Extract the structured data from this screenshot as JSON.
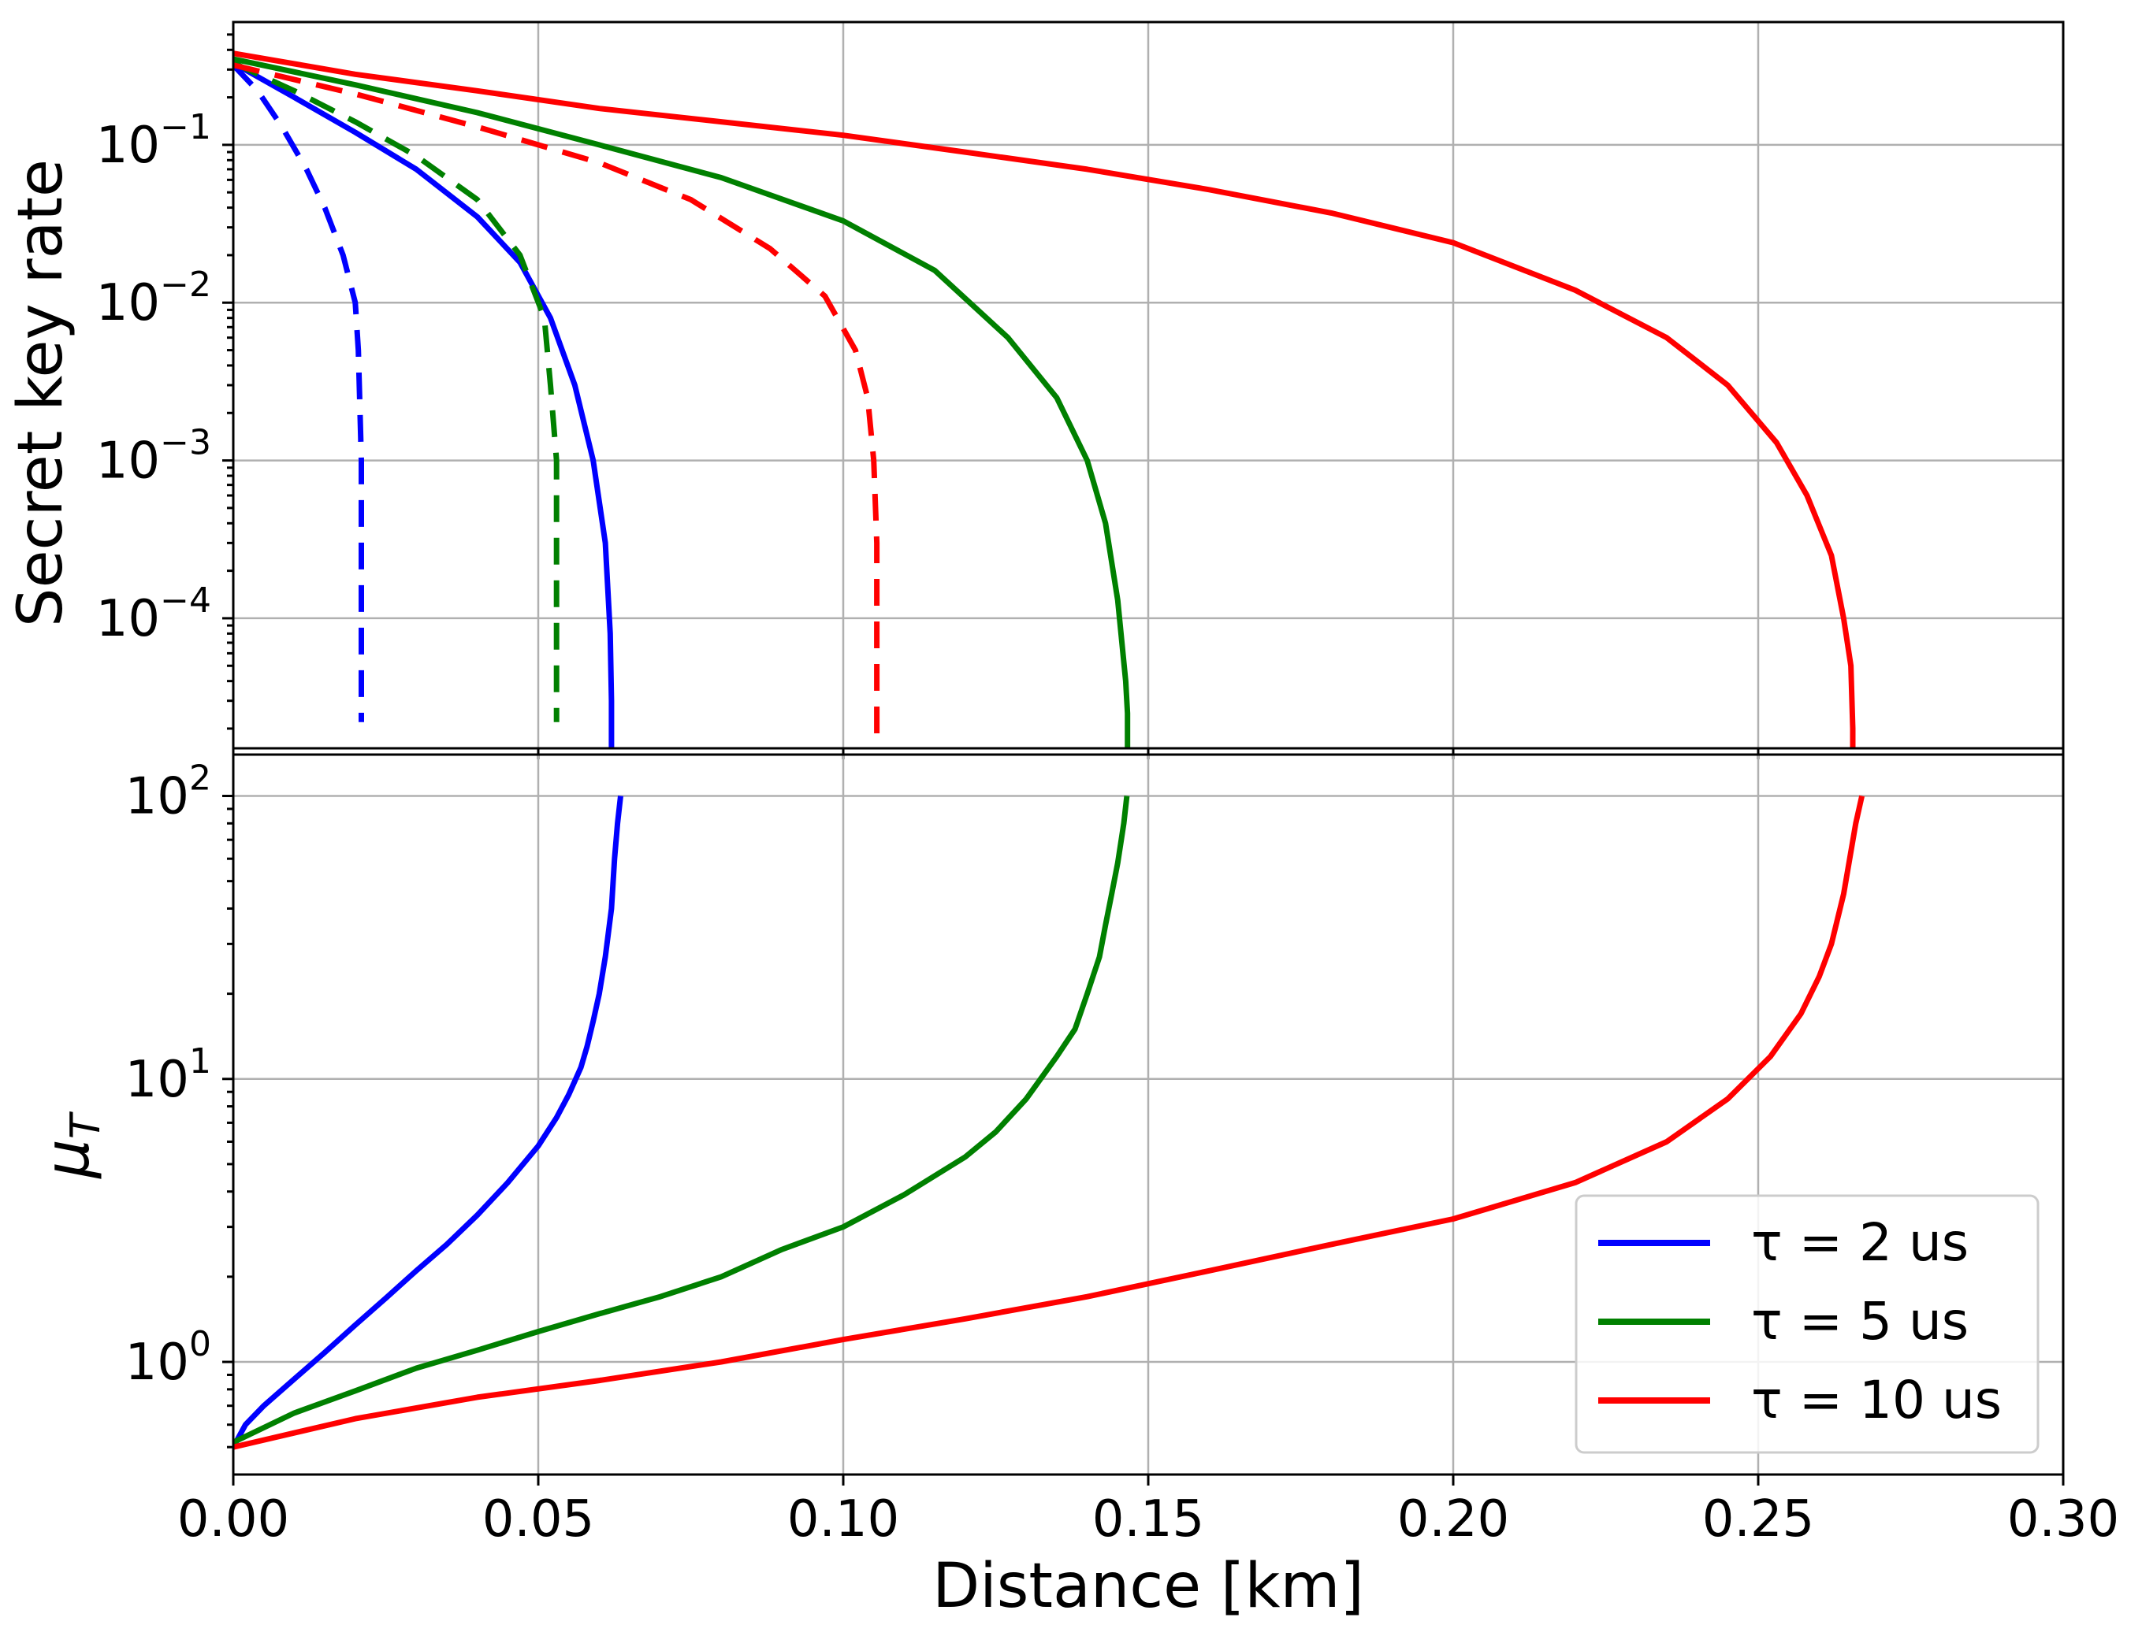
{
  "chart_data": [
    {
      "type": "line",
      "panel": "top",
      "xlabel": "",
      "ylabel": "Secret key rate",
      "yscale": "log",
      "xlim": [
        0.0,
        0.3
      ],
      "ylim": [
        1.5e-05,
        0.6
      ],
      "grid": true,
      "yticks": [
        {
          "value": 0.0001,
          "base": "10",
          "exp": "−4"
        },
        {
          "value": 0.001,
          "base": "10",
          "exp": "−3"
        },
        {
          "value": 0.01,
          "base": "10",
          "exp": "−2"
        },
        {
          "value": 0.1,
          "base": "10",
          "exp": "−1"
        }
      ],
      "series": [
        {
          "color": "#0000ff",
          "dash": true,
          "x": [
            0.0,
            0.004,
            0.008,
            0.012,
            0.015,
            0.018,
            0.02,
            0.0205,
            0.021,
            0.021,
            0.021
          ],
          "y": [
            0.32,
            0.22,
            0.13,
            0.07,
            0.04,
            0.02,
            0.01,
            0.005,
            0.001,
            0.0001,
            2.2e-05
          ]
        },
        {
          "color": "#0000ff",
          "dash": false,
          "x": [
            0.0,
            0.01,
            0.02,
            0.03,
            0.04,
            0.047,
            0.052,
            0.056,
            0.059,
            0.061,
            0.0618,
            0.062,
            0.062
          ],
          "y": [
            0.33,
            0.2,
            0.12,
            0.07,
            0.035,
            0.018,
            0.008,
            0.003,
            0.001,
            0.0003,
            8e-05,
            3e-05,
            1.5e-05
          ]
        },
        {
          "color": "#008000",
          "dash": true,
          "x": [
            0.0,
            0.01,
            0.02,
            0.03,
            0.04,
            0.047,
            0.051,
            0.052,
            0.053,
            0.053,
            0.053
          ],
          "y": [
            0.33,
            0.22,
            0.14,
            0.085,
            0.045,
            0.02,
            0.008,
            0.003,
            0.001,
            0.0001,
            2.2e-05
          ]
        },
        {
          "color": "#008000",
          "dash": false,
          "x": [
            0.0,
            0.02,
            0.04,
            0.06,
            0.08,
            0.1,
            0.115,
            0.127,
            0.135,
            0.14,
            0.143,
            0.145,
            0.1463,
            0.1466,
            0.1466
          ],
          "y": [
            0.35,
            0.24,
            0.16,
            0.1,
            0.062,
            0.033,
            0.016,
            0.006,
            0.0025,
            0.001,
            0.0004,
            0.00013,
            4e-05,
            2.5e-05,
            1.5e-05
          ]
        },
        {
          "color": "#ff0000",
          "dash": true,
          "x": [
            0.0,
            0.02,
            0.04,
            0.06,
            0.075,
            0.088,
            0.097,
            0.102,
            0.104,
            0.105,
            0.1055,
            0.1055,
            0.1055
          ],
          "y": [
            0.32,
            0.21,
            0.13,
            0.077,
            0.045,
            0.022,
            0.011,
            0.005,
            0.0025,
            0.001,
            0.0003,
            0.0001,
            1.5e-05
          ]
        },
        {
          "color": "#ff0000",
          "dash": false,
          "x": [
            0.0,
            0.02,
            0.04,
            0.06,
            0.08,
            0.1,
            0.12,
            0.14,
            0.16,
            0.18,
            0.2,
            0.22,
            0.235,
            0.245,
            0.253,
            0.258,
            0.262,
            0.264,
            0.2652,
            0.2655,
            0.2655
          ],
          "y": [
            0.38,
            0.28,
            0.22,
            0.17,
            0.14,
            0.115,
            0.09,
            0.07,
            0.052,
            0.037,
            0.024,
            0.012,
            0.006,
            0.003,
            0.0013,
            0.0006,
            0.00025,
            0.0001,
            5e-05,
            2e-05,
            1.5e-05
          ]
        }
      ]
    },
    {
      "type": "line",
      "panel": "bottom",
      "xlabel": "Distance [km]",
      "ylabel": "μ",
      "ylabel_sub": "T",
      "yscale": "log",
      "xlim": [
        0.0,
        0.3
      ],
      "ylim": [
        0.4,
        140
      ],
      "grid": true,
      "xticks": [
        "0.00",
        "0.05",
        "0.10",
        "0.15",
        "0.20",
        "0.25",
        "0.30"
      ],
      "xtick_values": [
        0.0,
        0.05,
        0.1,
        0.15,
        0.2,
        0.25,
        0.3
      ],
      "yticks": [
        {
          "value": 1,
          "base": "10",
          "exp": "0"
        },
        {
          "value": 10,
          "base": "10",
          "exp": "1"
        },
        {
          "value": 100,
          "base": "10",
          "exp": "2"
        }
      ],
      "legend": {
        "placement": "lower-right",
        "entries": [
          {
            "label": "τ =  2 us",
            "color": "#0000ff"
          },
          {
            "label": "τ =  5 us",
            "color": "#008000"
          },
          {
            "label": "τ = 10 us",
            "color": "#ff0000"
          }
        ]
      },
      "series": [
        {
          "color": "#0000ff",
          "dash": false,
          "x": [
            0.0,
            0.002,
            0.005,
            0.01,
            0.015,
            0.02,
            0.025,
            0.03,
            0.035,
            0.04,
            0.045,
            0.05,
            0.053,
            0.055,
            0.057,
            0.058,
            0.059,
            0.06,
            0.061,
            0.062,
            0.0625,
            0.063,
            0.0635
          ],
          "y": [
            0.5,
            0.6,
            0.7,
            0.87,
            1.08,
            1.35,
            1.68,
            2.1,
            2.6,
            3.3,
            4.3,
            5.8,
            7.3,
            8.8,
            11.0,
            13.0,
            16.0,
            20.0,
            27.0,
            40.0,
            60.0,
            80.0,
            100.0
          ]
        },
        {
          "color": "#008000",
          "dash": false,
          "x": [
            0.0,
            0.01,
            0.02,
            0.03,
            0.04,
            0.05,
            0.06,
            0.07,
            0.08,
            0.09,
            0.1,
            0.11,
            0.12,
            0.125,
            0.13,
            0.135,
            0.138,
            0.14,
            0.142,
            0.143,
            0.144,
            0.145,
            0.146,
            0.1465
          ],
          "y": [
            0.52,
            0.66,
            0.79,
            0.95,
            1.1,
            1.28,
            1.48,
            1.7,
            2.0,
            2.5,
            3.0,
            3.9,
            5.3,
            6.5,
            8.5,
            12.0,
            15.0,
            20.0,
            27.0,
            35.0,
            45.0,
            58.0,
            80.0,
            100.0
          ]
        },
        {
          "color": "#ff0000",
          "dash": false,
          "x": [
            0.0,
            0.02,
            0.04,
            0.06,
            0.08,
            0.1,
            0.12,
            0.14,
            0.16,
            0.18,
            0.2,
            0.22,
            0.235,
            0.245,
            0.252,
            0.257,
            0.26,
            0.262,
            0.264,
            0.265,
            0.266,
            0.267
          ],
          "y": [
            0.5,
            0.63,
            0.75,
            0.86,
            1.0,
            1.2,
            1.42,
            1.7,
            2.1,
            2.6,
            3.2,
            4.3,
            6.0,
            8.5,
            12.0,
            17.0,
            23.0,
            30.0,
            45.0,
            60.0,
            80.0,
            100.0
          ]
        }
      ]
    }
  ]
}
